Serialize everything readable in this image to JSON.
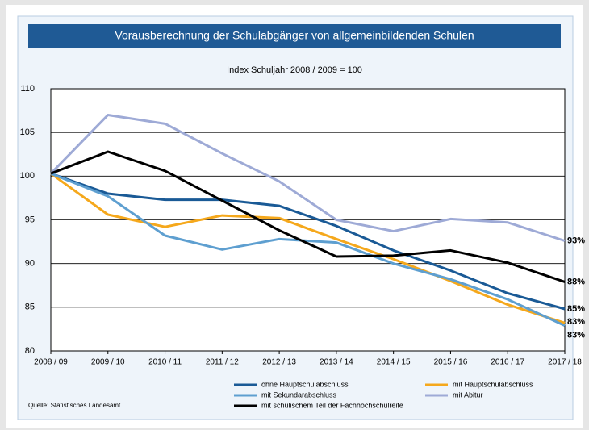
{
  "chart_data": {
    "type": "line",
    "title": "Vorausberechnung der Schulabgänger von allgemeinbildenden Schulen",
    "subtitle": "Index Schuljahr 2008 / 2009 = 100",
    "source": "Quelle: Statistisches Landesamt",
    "categories": [
      "2008 / 09",
      "2009 / 10",
      "2010 / 11",
      "2011 / 12",
      "2012 / 13",
      "2013 / 14",
      "2014 / 15",
      "2015 / 16",
      "2016 / 17",
      "2017 / 18"
    ],
    "ylim": [
      80,
      110
    ],
    "yticks": [
      80,
      85,
      90,
      95,
      100,
      105,
      110
    ],
    "grid": true,
    "series": [
      {
        "name": "ohne Hauptschulabschluss",
        "color": "#1a5a96",
        "values": [
          100.3,
          98.0,
          97.3,
          97.3,
          96.6,
          94.3,
          91.5,
          89.2,
          86.6,
          84.8
        ],
        "value_labels": [
          null,
          null,
          null,
          null,
          null,
          null,
          null,
          null,
          null,
          "85%"
        ]
      },
      {
        "name": "mit Hauptschulabschluss",
        "color": "#f5a81c",
        "values": [
          100.3,
          95.6,
          94.2,
          95.5,
          95.2,
          92.8,
          90.5,
          88.0,
          85.3,
          83.2
        ],
        "value_labels": [
          null,
          null,
          null,
          null,
          null,
          null,
          null,
          null,
          null,
          "83%"
        ]
      },
      {
        "name": "mit Sekundarabschluss",
        "color": "#5e9fd0",
        "values": [
          100.3,
          97.7,
          93.2,
          91.6,
          92.8,
          92.4,
          90.0,
          88.2,
          85.9,
          82.9
        ],
        "value_labels": [
          null,
          null,
          null,
          null,
          null,
          null,
          null,
          null,
          null,
          "83%"
        ]
      },
      {
        "name": "mit Abitur",
        "color": "#9eaad6",
        "values": [
          100.3,
          107.0,
          106.0,
          102.6,
          99.4,
          95.0,
          93.7,
          95.1,
          94.7,
          92.6
        ],
        "value_labels": [
          null,
          null,
          null,
          null,
          null,
          null,
          null,
          null,
          null,
          "93%"
        ]
      },
      {
        "name": "mit schulischem Teil der Fachhochschulreife",
        "color": "#000000",
        "values": [
          100.3,
          102.8,
          100.6,
          97.2,
          93.8,
          90.8,
          90.9,
          91.5,
          90.1,
          87.9
        ],
        "value_labels": [
          null,
          null,
          null,
          null,
          null,
          null,
          null,
          null,
          null,
          "88%"
        ]
      }
    ]
  }
}
